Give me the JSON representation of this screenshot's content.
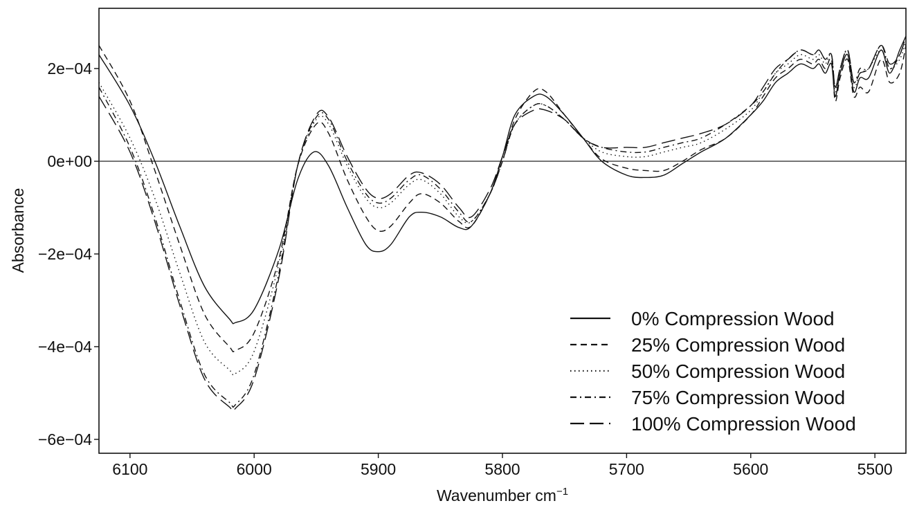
{
  "chart_data": {
    "type": "line",
    "title": "",
    "xlabel": "Wavenumber cm",
    "xlabel_sup": "−1",
    "ylabel": "Absorbance",
    "xlim": [
      6125,
      5475
    ],
    "ylim": [
      -0.00063,
      0.00033
    ],
    "x_reversed": true,
    "x_ticks": [
      6100,
      6000,
      5900,
      5800,
      5700,
      5600,
      5500
    ],
    "x_tick_labels": [
      "6100",
      "6000",
      "5900",
      "5800",
      "5700",
      "5600",
      "5500"
    ],
    "y_ticks": [
      0.0002,
      0,
      -0.0002,
      -0.0004,
      -0.0006
    ],
    "y_tick_labels": [
      "2e−04",
      "0e+00",
      "−2e−04",
      "−4e−04",
      "−6e−04"
    ],
    "zero_line": true,
    "grid": false,
    "legend_position": "bottom-right",
    "series": [
      {
        "name": "0% Compression Wood",
        "dash": "solid",
        "points": [
          [
            6125,
            0.00023
          ],
          [
            6100,
            0.00012
          ],
          [
            6080,
            0.0
          ],
          [
            6060,
            -0.00014
          ],
          [
            6040,
            -0.00027
          ],
          [
            6020,
            -0.00034
          ],
          [
            6015,
            -0.000348
          ],
          [
            6000,
            -0.00032
          ],
          [
            5980,
            -0.00019
          ],
          [
            5965,
            -4e-05
          ],
          [
            5952,
            2e-05
          ],
          [
            5940,
            -1e-05
          ],
          [
            5925,
            -0.0001
          ],
          [
            5910,
            -0.00018
          ],
          [
            5900,
            -0.000195
          ],
          [
            5890,
            -0.00018
          ],
          [
            5875,
            -0.00012
          ],
          [
            5865,
            -0.00011
          ],
          [
            5850,
            -0.00012
          ],
          [
            5835,
            -0.000143
          ],
          [
            5825,
            -0.00014
          ],
          [
            5810,
            -7e-05
          ],
          [
            5800,
            1e-05
          ],
          [
            5790,
            0.0001
          ],
          [
            5775,
            0.00014
          ],
          [
            5765,
            0.00014
          ],
          [
            5750,
            0.0001
          ],
          [
            5735,
            5e-05
          ],
          [
            5720,
            0.0
          ],
          [
            5700,
            -3e-05
          ],
          [
            5685,
            -3.5e-05
          ],
          [
            5670,
            -3e-05
          ],
          [
            5655,
            -5e-06
          ],
          [
            5640,
            2e-05
          ],
          [
            5620,
            5e-05
          ],
          [
            5600,
            0.0001
          ],
          [
            5590,
            0.00013
          ],
          [
            5580,
            0.00017
          ],
          [
            5570,
            0.00019
          ],
          [
            5560,
            0.00021
          ],
          [
            5550,
            0.0002
          ],
          [
            5545,
            0.00021
          ],
          [
            5540,
            0.00019
          ],
          [
            5535,
            0.00021
          ],
          [
            5532,
            0.00014
          ],
          [
            5528,
            0.00019
          ],
          [
            5522,
            0.00023
          ],
          [
            5517,
            0.00015
          ],
          [
            5512,
            0.00018
          ],
          [
            5505,
            0.00018
          ],
          [
            5495,
            0.00024
          ],
          [
            5488,
            0.00019
          ],
          [
            5480,
            0.00024
          ],
          [
            5475,
            0.00027
          ]
        ]
      },
      {
        "name": "25% Compression Wood",
        "dash": "dash-short",
        "points": [
          [
            6125,
            0.00025
          ],
          [
            6100,
            0.00013
          ],
          [
            6080,
            -2e-05
          ],
          [
            6060,
            -0.00018
          ],
          [
            6040,
            -0.00033
          ],
          [
            6020,
            -0.0004
          ],
          [
            6015,
            -0.000408
          ],
          [
            6000,
            -0.00037
          ],
          [
            5980,
            -0.00021
          ],
          [
            5965,
            -1e-05
          ],
          [
            5950,
            8e-05
          ],
          [
            5940,
            6e-05
          ],
          [
            5925,
            -4e-05
          ],
          [
            5910,
            -0.00012
          ],
          [
            5900,
            -0.00015
          ],
          [
            5890,
            -0.00014
          ],
          [
            5875,
            -9e-05
          ],
          [
            5865,
            -7e-05
          ],
          [
            5850,
            -9e-05
          ],
          [
            5835,
            -0.00013
          ],
          [
            5825,
            -0.00014
          ],
          [
            5810,
            -7e-05
          ],
          [
            5800,
            0.0
          ],
          [
            5790,
            9e-05
          ],
          [
            5775,
            0.00015
          ],
          [
            5765,
            0.00015
          ],
          [
            5750,
            0.0001
          ],
          [
            5735,
            5e-05
          ],
          [
            5720,
            5e-06
          ],
          [
            5700,
            -1.5e-05
          ],
          [
            5685,
            -2e-05
          ],
          [
            5670,
            -2e-05
          ],
          [
            5655,
            0.0
          ],
          [
            5640,
            2.5e-05
          ],
          [
            5620,
            5e-05
          ],
          [
            5600,
            0.0001
          ],
          [
            5590,
            0.00014
          ],
          [
            5580,
            0.00018
          ],
          [
            5570,
            0.0002
          ],
          [
            5560,
            0.00022
          ],
          [
            5550,
            0.00021
          ],
          [
            5545,
            0.00022
          ],
          [
            5540,
            0.0002
          ],
          [
            5535,
            0.00022
          ],
          [
            5532,
            0.00013
          ],
          [
            5528,
            0.00018
          ],
          [
            5522,
            0.00022
          ],
          [
            5517,
            0.00014
          ],
          [
            5512,
            0.00016
          ],
          [
            5505,
            0.00015
          ],
          [
            5495,
            0.00022
          ],
          [
            5488,
            0.00017
          ],
          [
            5480,
            0.00019
          ],
          [
            5475,
            0.00025
          ]
        ]
      },
      {
        "name": "50% Compression Wood",
        "dash": "dotted",
        "points": [
          [
            6125,
            0.00017
          ],
          [
            6100,
            5e-05
          ],
          [
            6080,
            -8e-05
          ],
          [
            6060,
            -0.00024
          ],
          [
            6040,
            -0.00039
          ],
          [
            6020,
            -0.00045
          ],
          [
            6015,
            -0.000458
          ],
          [
            6000,
            -0.00041
          ],
          [
            5980,
            -0.00022
          ],
          [
            5965,
            -1e-05
          ],
          [
            5950,
            9e-05
          ],
          [
            5940,
            8e-05
          ],
          [
            5925,
            -1e-05
          ],
          [
            5910,
            -8e-05
          ],
          [
            5900,
            -0.0001
          ],
          [
            5890,
            -9e-05
          ],
          [
            5875,
            -5e-05
          ],
          [
            5865,
            -4e-05
          ],
          [
            5850,
            -7e-05
          ],
          [
            5835,
            -0.00012
          ],
          [
            5825,
            -0.00013
          ],
          [
            5810,
            -7e-05
          ],
          [
            5800,
            0.0
          ],
          [
            5790,
            8e-05
          ],
          [
            5775,
            0.00012
          ],
          [
            5765,
            0.00012
          ],
          [
            5750,
            9e-05
          ],
          [
            5735,
            5e-05
          ],
          [
            5720,
            2e-05
          ],
          [
            5700,
            1e-05
          ],
          [
            5685,
            1e-05
          ],
          [
            5670,
            2e-05
          ],
          [
            5655,
            3e-05
          ],
          [
            5640,
            4e-05
          ],
          [
            5620,
            7e-05
          ],
          [
            5600,
            0.00011
          ],
          [
            5590,
            0.00015
          ],
          [
            5580,
            0.00019
          ],
          [
            5570,
            0.00021
          ],
          [
            5560,
            0.00023
          ],
          [
            5550,
            0.00022
          ],
          [
            5545,
            0.00023
          ],
          [
            5540,
            0.00021
          ],
          [
            5535,
            0.00023
          ],
          [
            5532,
            0.00015
          ],
          [
            5528,
            0.0002
          ],
          [
            5522,
            0.00024
          ],
          [
            5517,
            0.00016
          ],
          [
            5512,
            0.00019
          ],
          [
            5505,
            0.0002
          ],
          [
            5495,
            0.00024
          ],
          [
            5488,
            0.0002
          ],
          [
            5480,
            0.00022
          ],
          [
            5475,
            0.00026
          ]
        ]
      },
      {
        "name": "75% Compression Wood",
        "dash": "dash-dot",
        "points": [
          [
            6125,
            0.00016
          ],
          [
            6100,
            3e-05
          ],
          [
            6080,
            -0.00012
          ],
          [
            6060,
            -0.0003
          ],
          [
            6040,
            -0.00046
          ],
          [
            6020,
            -0.00052
          ],
          [
            6015,
            -0.000525
          ],
          [
            6000,
            -0.00046
          ],
          [
            5980,
            -0.00024
          ],
          [
            5965,
            -1e-05
          ],
          [
            5950,
            9.5e-05
          ],
          [
            5940,
            9e-05
          ],
          [
            5925,
            0.0
          ],
          [
            5910,
            -7e-05
          ],
          [
            5900,
            -9e-05
          ],
          [
            5890,
            -8e-05
          ],
          [
            5875,
            -4e-05
          ],
          [
            5865,
            -3e-05
          ],
          [
            5850,
            -6e-05
          ],
          [
            5835,
            -0.00011
          ],
          [
            5825,
            -0.00013
          ],
          [
            5810,
            -7e-05
          ],
          [
            5800,
            0.0
          ],
          [
            5790,
            8e-05
          ],
          [
            5775,
            0.00012
          ],
          [
            5765,
            0.00012
          ],
          [
            5750,
            9e-05
          ],
          [
            5735,
            5e-05
          ],
          [
            5720,
            3e-05
          ],
          [
            5700,
            2e-05
          ],
          [
            5685,
            2e-05
          ],
          [
            5670,
            3e-05
          ],
          [
            5655,
            4e-05
          ],
          [
            5640,
            5e-05
          ],
          [
            5620,
            8e-05
          ],
          [
            5600,
            0.00012
          ],
          [
            5590,
            0.00015
          ],
          [
            5580,
            0.00019
          ],
          [
            5570,
            0.00022
          ],
          [
            5560,
            0.00024
          ],
          [
            5550,
            0.00023
          ],
          [
            5545,
            0.00024
          ],
          [
            5540,
            0.00022
          ],
          [
            5535,
            0.00023
          ],
          [
            5532,
            0.00016
          ],
          [
            5528,
            0.0002
          ],
          [
            5522,
            0.00024
          ],
          [
            5517,
            0.00017
          ],
          [
            5512,
            0.0002
          ],
          [
            5505,
            0.0002
          ],
          [
            5495,
            0.00025
          ],
          [
            5488,
            0.0002
          ],
          [
            5480,
            0.00023
          ],
          [
            5475,
            0.00027
          ]
        ]
      },
      {
        "name": "100% Compression Wood",
        "dash": "dash-long",
        "points": [
          [
            6125,
            0.00014
          ],
          [
            6100,
            2e-05
          ],
          [
            6080,
            -0.00013
          ],
          [
            6060,
            -0.00031
          ],
          [
            6040,
            -0.00047
          ],
          [
            6020,
            -0.00053
          ],
          [
            6015,
            -0.000533
          ],
          [
            6000,
            -0.00047
          ],
          [
            5980,
            -0.00025
          ],
          [
            5965,
            -1e-05
          ],
          [
            5950,
            0.0001
          ],
          [
            5940,
            9.5e-05
          ],
          [
            5925,
            1e-05
          ],
          [
            5910,
            -6e-05
          ],
          [
            5900,
            -8e-05
          ],
          [
            5890,
            -7e-05
          ],
          [
            5875,
            -3e-05
          ],
          [
            5865,
            -2.5e-05
          ],
          [
            5850,
            -5e-05
          ],
          [
            5835,
            -0.0001
          ],
          [
            5825,
            -0.00012
          ],
          [
            5810,
            -6e-05
          ],
          [
            5800,
            1e-05
          ],
          [
            5790,
            8e-05
          ],
          [
            5775,
            0.00011
          ],
          [
            5765,
            0.00011
          ],
          [
            5750,
            9e-05
          ],
          [
            5735,
            5e-05
          ],
          [
            5720,
            3e-05
          ],
          [
            5700,
            3e-05
          ],
          [
            5685,
            3e-05
          ],
          [
            5670,
            4e-05
          ],
          [
            5655,
            5e-05
          ],
          [
            5640,
            6e-05
          ],
          [
            5620,
            8e-05
          ],
          [
            5600,
            0.00012
          ],
          [
            5590,
            0.00016
          ],
          [
            5580,
            0.0002
          ],
          [
            5570,
            0.00022
          ],
          [
            5560,
            0.00024
          ],
          [
            5550,
            0.00023
          ],
          [
            5545,
            0.00024
          ],
          [
            5540,
            0.00022
          ],
          [
            5535,
            0.00023
          ],
          [
            5532,
            0.00016
          ],
          [
            5528,
            0.0002
          ],
          [
            5522,
            0.00024
          ],
          [
            5517,
            0.00017
          ],
          [
            5512,
            0.00019
          ],
          [
            5505,
            0.0002
          ],
          [
            5495,
            0.00025
          ],
          [
            5488,
            0.00021
          ],
          [
            5480,
            0.00023
          ],
          [
            5475,
            0.00027
          ]
        ]
      }
    ]
  }
}
